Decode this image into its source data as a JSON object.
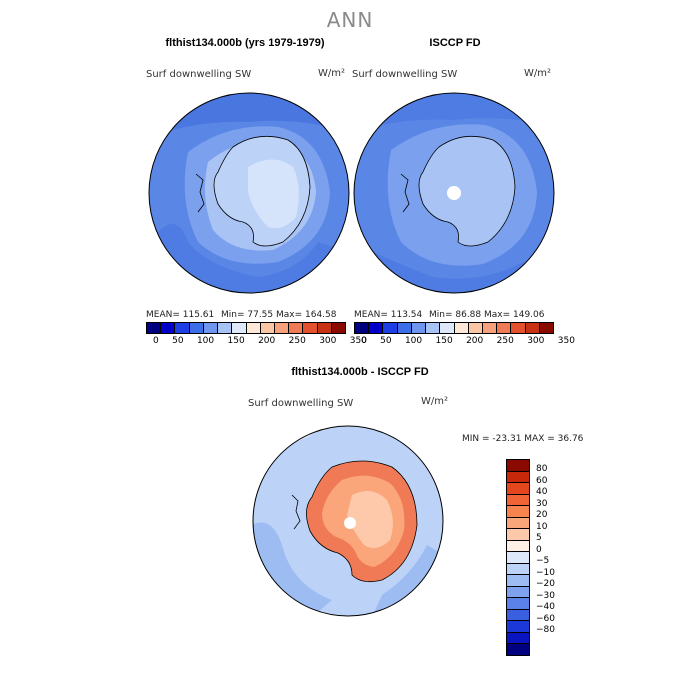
{
  "title": "ANN",
  "panels": [
    {
      "heading": "flthist134.000b (yrs 1979-1979)",
      "field": "Surf downwelling SW",
      "units": "W/m²",
      "stats": {
        "mean": "MEAN= 115.61",
        "min": "Min=  77.55",
        "max": "Max= 164.58"
      }
    },
    {
      "heading": "ISCCP FD",
      "field": "Surf downwelling SW",
      "units": "W/m²",
      "stats": {
        "mean": "MEAN= 113.54",
        "min": "Min=  86.88",
        "max": "Max= 149.06"
      }
    },
    {
      "heading": "flthist134.000b - ISCCP FD",
      "field": "Surf downwelling SW",
      "units": "W/m²",
      "stats": {
        "minmax": "MIN = -23.31 MAX =  36.76"
      }
    }
  ],
  "abs_colorbar": {
    "colors": [
      "#000080",
      "#0000c8",
      "#1f3fe6",
      "#3c6ee8",
      "#6e96f0",
      "#a8c2f4",
      "#dde8fb",
      "#ffe8d8",
      "#fbc6a4",
      "#f7a07c",
      "#f07a56",
      "#e4512f",
      "#c83214",
      "#8a0a00"
    ],
    "ticks": [
      "0",
      "50",
      "100",
      "150",
      "200",
      "250",
      "300",
      "350"
    ]
  },
  "diff_colorbar": {
    "colors": [
      "#8a0a00",
      "#c8280a",
      "#e4461e",
      "#f06436",
      "#f7844f",
      "#fba57a",
      "#fdc9aa",
      "#fff0e6",
      "#dde8fb",
      "#bcd2f7",
      "#9dbcf2",
      "#7ea2ee",
      "#5a82e8",
      "#3a5fe0",
      "#1c38d8",
      "#0a14c0",
      "#000080"
    ],
    "labels": [
      "80",
      "60",
      "40",
      "30",
      "20",
      "10",
      "5",
      "0",
      "−5",
      "−10",
      "−20",
      "−30",
      "−40",
      "−60",
      "−80"
    ]
  }
}
